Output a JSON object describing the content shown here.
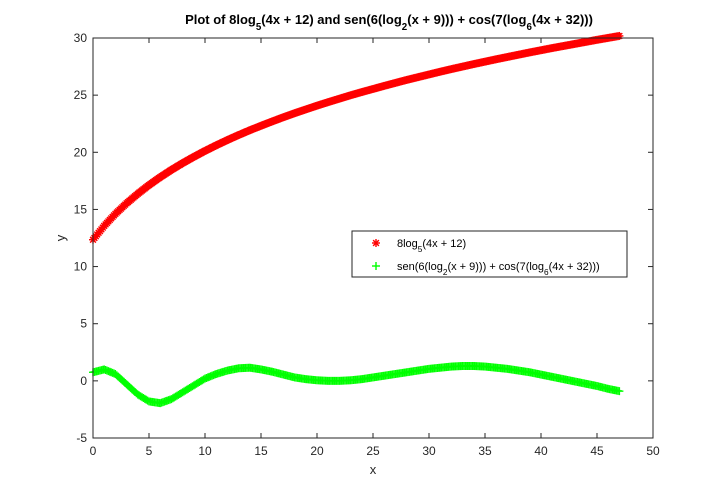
{
  "chart_data": {
    "type": "scatter",
    "title_parts": [
      {
        "t": "Plot of 8log"
      },
      {
        "t": "5",
        "sub": true
      },
      {
        "t": "(4x + 12) and sen(6(log"
      },
      {
        "t": "2",
        "sub": true
      },
      {
        "t": "(x + 9))) + cos(7(log"
      },
      {
        "t": "6",
        "sub": true
      },
      {
        "t": "(4x + 32)))"
      }
    ],
    "xlabel": "x",
    "ylabel": "y",
    "xlim": [
      0,
      50
    ],
    "ylim": [
      -5,
      30
    ],
    "xticks": [
      0,
      5,
      10,
      15,
      20,
      25,
      30,
      35,
      40,
      45,
      50
    ],
    "yticks": [
      -5,
      0,
      5,
      10,
      15,
      20,
      25,
      30
    ],
    "grid": false,
    "legend_position": "right-center",
    "series": [
      {
        "name_parts": [
          {
            "t": "8log"
          },
          {
            "t": "5",
            "sub": true
          },
          {
            "t": "(4x + 12)"
          }
        ],
        "marker": "asterisk",
        "color": "#ff0000",
        "x": [
          0,
          1,
          2,
          3,
          4,
          5,
          6,
          7,
          8,
          9,
          10,
          11,
          12,
          13,
          14,
          15,
          16,
          17,
          18,
          19,
          20,
          21,
          22,
          23,
          24,
          25,
          26,
          27,
          28,
          29,
          30,
          31,
          32,
          33,
          34,
          35,
          36,
          37,
          38,
          39,
          40,
          41,
          42,
          43,
          44,
          45,
          46,
          47
        ],
        "y": [
          12.35,
          13.56,
          14.61,
          15.54,
          16.37,
          17.13,
          17.82,
          18.46,
          19.05,
          19.6,
          20.12,
          20.61,
          21.07,
          21.51,
          21.93,
          22.32,
          22.7,
          23.07,
          23.42,
          23.75,
          24.08,
          24.39,
          24.69,
          24.99,
          25.27,
          25.54,
          25.81,
          26.07,
          26.33,
          26.57,
          26.81,
          27.05,
          27.28,
          27.5,
          27.72,
          27.93,
          28.14,
          28.34,
          28.54,
          28.74,
          28.93,
          29.12,
          29.3,
          29.48,
          29.66,
          29.84,
          30.01,
          30.18
        ]
      },
      {
        "name_parts": [
          {
            "t": "sen(6(log"
          },
          {
            "t": "2",
            "sub": true
          },
          {
            "t": "(x + 9))) + cos(7(log"
          },
          {
            "t": "6",
            "sub": true
          },
          {
            "t": "(4x + 32)))"
          }
        ],
        "marker": "plus",
        "color": "#00ff00",
        "x": [
          0,
          1,
          2,
          3,
          4,
          5,
          6,
          7,
          8,
          9,
          10,
          11,
          12,
          13,
          14,
          15,
          16,
          17,
          18,
          19,
          20,
          21,
          22,
          23,
          24,
          25,
          26,
          27,
          28,
          29,
          30,
          31,
          32,
          33,
          34,
          35,
          36,
          37,
          38,
          39,
          40,
          41,
          42,
          43,
          44,
          45,
          46,
          47
        ],
        "y": [
          0.75,
          1.0,
          0.6,
          -0.3,
          -1.2,
          -1.8,
          -1.95,
          -1.6,
          -1.0,
          -0.4,
          0.2,
          0.6,
          0.9,
          1.1,
          1.15,
          1.0,
          0.8,
          0.55,
          0.3,
          0.15,
          0.05,
          0.0,
          0.0,
          0.05,
          0.15,
          0.3,
          0.45,
          0.6,
          0.75,
          0.9,
          1.05,
          1.15,
          1.25,
          1.3,
          1.3,
          1.25,
          1.15,
          1.05,
          0.9,
          0.75,
          0.55,
          0.35,
          0.15,
          -0.05,
          -0.25,
          -0.45,
          -0.7,
          -0.9
        ]
      }
    ]
  }
}
